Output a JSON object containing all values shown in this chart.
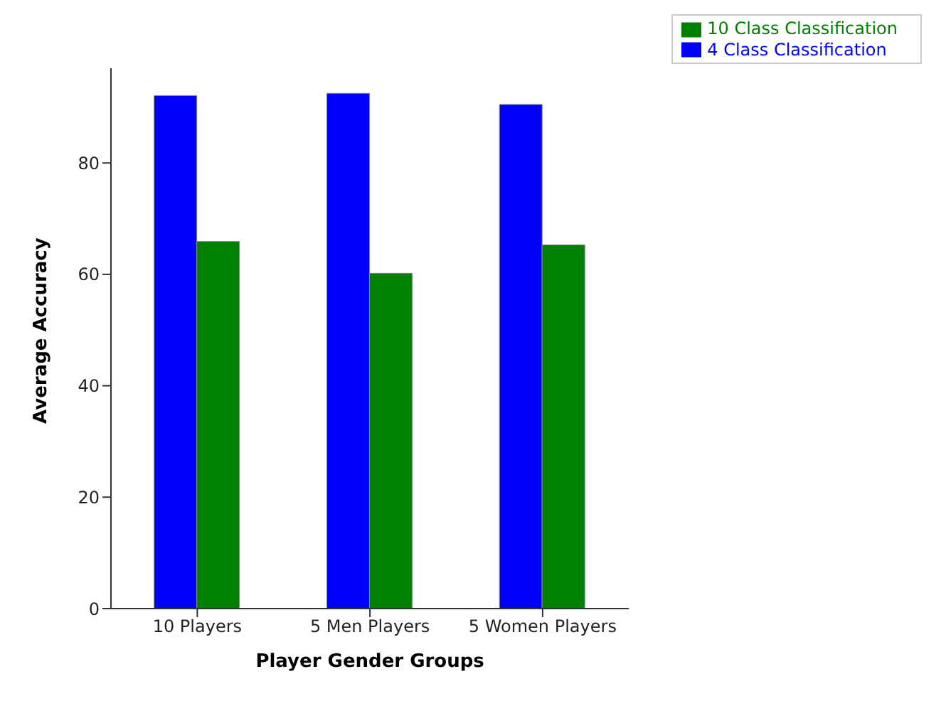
{
  "chart_data": {
    "type": "bar",
    "xlabel": "Player Gender Groups",
    "ylabel": "Average Accuracy",
    "categories": [
      "10 Players",
      "5 Men Players",
      "5 Women Players"
    ],
    "series": [
      {
        "name": "4 Class Classification",
        "color": "#0000ff",
        "values": [
          92.1,
          92.5,
          90.5
        ]
      },
      {
        "name": "10 Class Classification",
        "color": "#008000",
        "values": [
          65.9,
          60.2,
          65.3
        ]
      }
    ],
    "ylim": [
      0,
      97
    ],
    "yticks": [
      0,
      20,
      40,
      60,
      80
    ],
    "grid": false,
    "legend": "top right"
  }
}
